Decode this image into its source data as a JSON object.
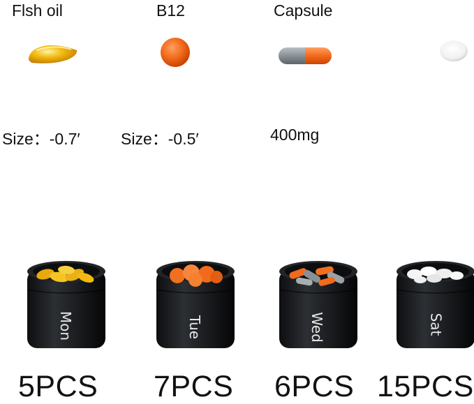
{
  "pills": [
    {
      "name": "Flsh oil",
      "size": "Size：-0.7′"
    },
    {
      "name": "B12",
      "size": "Size：-0.5′"
    },
    {
      "name": "Capsule",
      "size": "400mg"
    },
    {
      "name": "",
      "size": ""
    }
  ],
  "containers": [
    {
      "day": "Mon",
      "count": "5PCS"
    },
    {
      "day": "Tue",
      "count": "7PCS"
    },
    {
      "day": "Wed",
      "count": "6PCS"
    },
    {
      "day": "Sat",
      "count": "15PCS"
    }
  ],
  "colors": {
    "fish_oil": "#f2b90f",
    "b12": "#f26a1b",
    "capsule_gray": "#8a9196",
    "capsule_orange": "#f26a1b",
    "tablet": "#f4f4f4",
    "container": "#1b1d20"
  }
}
